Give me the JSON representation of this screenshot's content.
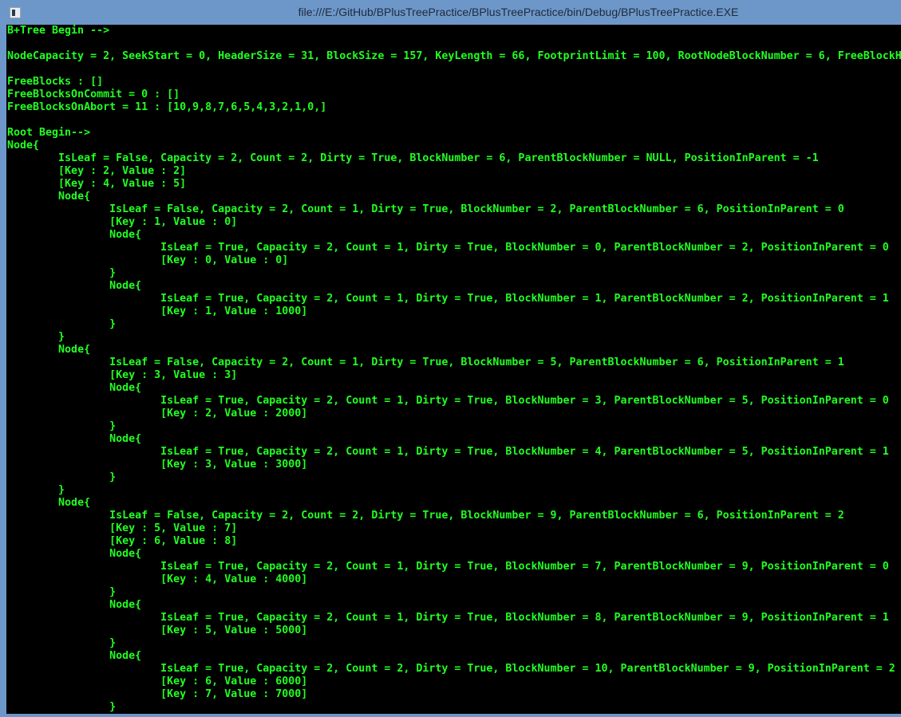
{
  "window": {
    "title": "file:///E:/GitHub/BPlusTreePractice/BPlusTreePractice/bin/Debug/BPlusTreePractice.EXE",
    "icon": "console-app-icon"
  },
  "console": {
    "text_color": "#22ff22",
    "background": "#000000",
    "lines": [
      "B+Tree Begin -->",
      "",
      "NodeCapacity = 2, SeekStart = 0, HeaderSize = 31, BlockSize = 157, KeyLength = 66, FootprintLimit = 100, RootNodeBlockNumber = 6, FreeBlockH",
      "",
      "FreeBlocks : []",
      "FreeBlocksOnCommit = 0 : []",
      "FreeBlocksOnAbort = 11 : [10,9,8,7,6,5,4,3,2,1,0,]",
      "",
      "Root Begin-->",
      "Node{",
      "\tIsLeaf = False, Capacity = 2, Count = 2, Dirty = True, BlockNumber = 6, ParentBlockNumber = NULL, PositionInParent = -1",
      "\t[Key : 2, Value : 2]",
      "\t[Key : 4, Value : 5]",
      "\tNode{",
      "\t\tIsLeaf = False, Capacity = 2, Count = 1, Dirty = True, BlockNumber = 2, ParentBlockNumber = 6, PositionInParent = 0",
      "\t\t[Key : 1, Value : 0]",
      "\t\tNode{",
      "\t\t\tIsLeaf = True, Capacity = 2, Count = 1, Dirty = True, BlockNumber = 0, ParentBlockNumber = 2, PositionInParent = 0",
      "\t\t\t[Key : 0, Value : 0]",
      "\t\t}",
      "\t\tNode{",
      "\t\t\tIsLeaf = True, Capacity = 2, Count = 1, Dirty = True, BlockNumber = 1, ParentBlockNumber = 2, PositionInParent = 1",
      "\t\t\t[Key : 1, Value : 1000]",
      "\t\t}",
      "\t}",
      "\tNode{",
      "\t\tIsLeaf = False, Capacity = 2, Count = 1, Dirty = True, BlockNumber = 5, ParentBlockNumber = 6, PositionInParent = 1",
      "\t\t[Key : 3, Value : 3]",
      "\t\tNode{",
      "\t\t\tIsLeaf = True, Capacity = 2, Count = 1, Dirty = True, BlockNumber = 3, ParentBlockNumber = 5, PositionInParent = 0",
      "\t\t\t[Key : 2, Value : 2000]",
      "\t\t}",
      "\t\tNode{",
      "\t\t\tIsLeaf = True, Capacity = 2, Count = 1, Dirty = True, BlockNumber = 4, ParentBlockNumber = 5, PositionInParent = 1",
      "\t\t\t[Key : 3, Value : 3000]",
      "\t\t}",
      "\t}",
      "\tNode{",
      "\t\tIsLeaf = False, Capacity = 2, Count = 2, Dirty = True, BlockNumber = 9, ParentBlockNumber = 6, PositionInParent = 2",
      "\t\t[Key : 5, Value : 7]",
      "\t\t[Key : 6, Value : 8]",
      "\t\tNode{",
      "\t\t\tIsLeaf = True, Capacity = 2, Count = 1, Dirty = True, BlockNumber = 7, ParentBlockNumber = 9, PositionInParent = 0",
      "\t\t\t[Key : 4, Value : 4000]",
      "\t\t}",
      "\t\tNode{",
      "\t\t\tIsLeaf = True, Capacity = 2, Count = 1, Dirty = True, BlockNumber = 8, ParentBlockNumber = 9, PositionInParent = 1",
      "\t\t\t[Key : 5, Value : 5000]",
      "\t\t}",
      "\t\tNode{",
      "\t\t\tIsLeaf = True, Capacity = 2, Count = 2, Dirty = True, BlockNumber = 10, ParentBlockNumber = 9, PositionInParent = 2",
      "\t\t\t[Key : 6, Value : 6000]",
      "\t\t\t[Key : 7, Value : 7000]",
      "\t\t}"
    ]
  }
}
